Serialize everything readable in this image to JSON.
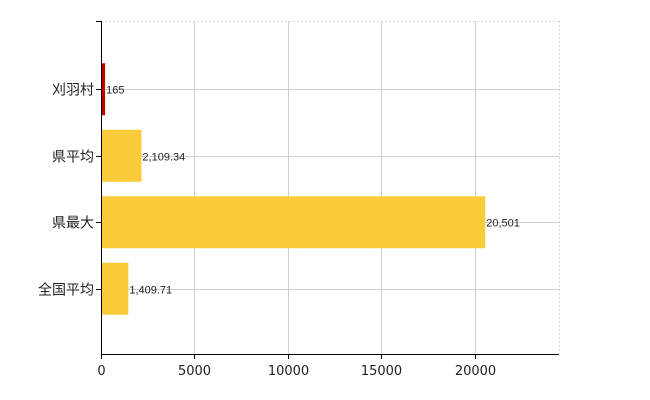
{
  "chart_data": {
    "type": "bar",
    "orientation": "horizontal",
    "categories": [
      "刈羽村",
      "県平均",
      "県最大",
      "全国平均"
    ],
    "values": [
      165,
      2109.34,
      20501,
      1409.71
    ],
    "value_labels": [
      "165",
      "2,109.34",
      "20,501",
      "1,409.71"
    ],
    "bar_colors": [
      "#c00000",
      "#fccb3c",
      "#fccb3c",
      "#fccb3c"
    ],
    "xlim": [
      0,
      24500
    ],
    "xticks": [
      0,
      5000,
      10000,
      15000,
      20000
    ],
    "xtick_labels": [
      "0",
      "5000",
      "10000",
      "15000",
      "20000"
    ],
    "grid": true,
    "title": "",
    "xlabel": "",
    "ylabel": ""
  }
}
